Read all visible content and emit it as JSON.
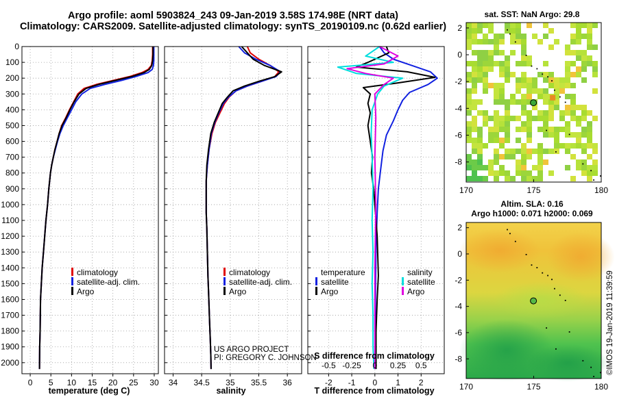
{
  "chart_data": {
    "type": "line",
    "title_line1": "Argo profile: aoml 5903824_243 09-Jan-2019 3.58S 174.98E (NRT data)",
    "title_line2": "Climatology: CARS2009. Satellite-adjusted climatology: synTS_20190109.nc (0.62d earlier)",
    "depth_axis": {
      "ticks": [
        0,
        100,
        200,
        300,
        400,
        500,
        600,
        700,
        800,
        900,
        1000,
        1100,
        1200,
        1300,
        1400,
        1500,
        1600,
        1700,
        1800,
        1900,
        2000
      ],
      "range": [
        0,
        2070
      ]
    },
    "panels": [
      {
        "id": "temperature",
        "xlabel": "temperature (deg C)",
        "xlim": [
          -2,
          31
        ],
        "xticks": [
          0,
          5,
          10,
          15,
          20,
          25,
          30
        ],
        "legend": [
          "climatology",
          "satellite-adj. clim.",
          "Argo"
        ],
        "series": [
          {
            "name": "climatology",
            "color": "#e00000",
            "x": [
              29.6,
              29.6,
              29.5,
              29.3,
              28.5,
              27.0,
              24.0,
              20.0,
              16.0,
              13.0,
              11.5,
              10.5,
              9.5,
              8.6,
              7.6,
              7.0,
              6.5,
              6.0,
              5.6,
              5.2,
              4.9,
              4.5,
              4.2,
              3.8,
              3.5,
              3.2,
              2.9,
              2.7,
              2.5,
              2.4,
              2.3,
              2.25
            ],
            "y": [
              0,
              50,
              90,
              120,
              145,
              165,
              190,
              215,
              240,
              265,
              300,
              350,
              400,
              450,
              500,
              550,
              600,
              650,
              700,
              750,
              800,
              900,
              1000,
              1100,
              1200,
              1300,
              1400,
              1500,
              1600,
              1800,
              1900,
              2040
            ]
          },
          {
            "name": "satellite-adj. clim.",
            "color": "#1020e0",
            "x": [
              29.9,
              29.9,
              29.9,
              29.8,
              29.5,
              28.5,
              25.5,
              22.0,
              18.0,
              14.5,
              12.5,
              11.0,
              10.0,
              9.0,
              8.0,
              7.2,
              6.6,
              6.1,
              5.6,
              5.2,
              4.9,
              4.5,
              4.2,
              3.8,
              3.5,
              3.2,
              2.9,
              2.7,
              2.5,
              2.4,
              2.3,
              2.25
            ],
            "y": [
              0,
              50,
              90,
              120,
              145,
              165,
              190,
              215,
              240,
              265,
              300,
              350,
              400,
              450,
              500,
              550,
              600,
              650,
              700,
              750,
              800,
              900,
              1000,
              1100,
              1200,
              1300,
              1400,
              1500,
              1600,
              1800,
              1900,
              2040
            ]
          },
          {
            "name": "Argo",
            "color": "#000000",
            "x": [
              29.7,
              29.7,
              29.6,
              29.4,
              28.8,
              27.5,
              24.5,
              20.5,
              16.5,
              13.5,
              11.8,
              10.6,
              9.6,
              8.7,
              7.7,
              7.0,
              6.5,
              6.0,
              5.6,
              5.2,
              4.9,
              4.5,
              4.2,
              3.8,
              3.5,
              3.2,
              2.9,
              2.7,
              2.5,
              2.4,
              2.3,
              2.25
            ],
            "y": [
              0,
              50,
              90,
              120,
              145,
              165,
              190,
              215,
              240,
              265,
              300,
              350,
              400,
              450,
              500,
              550,
              600,
              650,
              700,
              750,
              800,
              900,
              1000,
              1100,
              1200,
              1300,
              1400,
              1500,
              1600,
              1800,
              1900,
              2040
            ]
          }
        ]
      },
      {
        "id": "salinity",
        "xlabel": "salinity",
        "xlim": [
          33.85,
          36.25
        ],
        "xticks": [
          34,
          34.5,
          35,
          35.5,
          36
        ],
        "legend": [
          "climatology",
          "satellite-adj. clim.",
          "Argo"
        ],
        "series": [
          {
            "name": "climatology",
            "color": "#e00000",
            "x": [
              35.3,
              35.35,
              35.5,
              35.7,
              35.85,
              35.78,
              35.55,
              35.3,
              35.1,
              34.98,
              34.9,
              34.82,
              34.74,
              34.68,
              34.63,
              34.6,
              34.58,
              34.58,
              34.58,
              34.59,
              34.6,
              34.61,
              34.62,
              34.63,
              34.64,
              34.65,
              34.66,
              34.665
            ],
            "y": [
              0,
              40,
              80,
              120,
              160,
              190,
              220,
              250,
              280,
              320,
              360,
              420,
              480,
              550,
              650,
              750,
              850,
              950,
              1050,
              1150,
              1300,
              1450,
              1550,
              1650,
              1750,
              1850,
              1950,
              2040
            ]
          },
          {
            "name": "satellite-adj. clim.",
            "color": "#1020e0",
            "x": [
              35.15,
              35.25,
              35.45,
              35.7,
              35.88,
              35.8,
              35.55,
              35.3,
              35.1,
              34.97,
              34.88,
              34.8,
              34.73,
              34.67,
              34.63,
              34.6,
              34.58,
              34.58,
              34.58,
              34.59,
              34.6,
              34.61,
              34.62,
              34.63,
              34.64,
              34.65,
              34.66,
              34.665
            ],
            "y": [
              0,
              40,
              80,
              120,
              160,
              190,
              220,
              250,
              280,
              320,
              360,
              420,
              480,
              550,
              650,
              750,
              850,
              950,
              1050,
              1150,
              1300,
              1450,
              1550,
              1650,
              1750,
              1850,
              1950,
              2040
            ]
          },
          {
            "name": "Argo",
            "color": "#000000",
            "x": [
              35.2,
              35.3,
              35.4,
              35.6,
              35.9,
              35.78,
              35.5,
              35.25,
              35.05,
              34.95,
              34.86,
              34.79,
              34.72,
              34.66,
              34.62,
              34.59,
              34.58,
              34.58,
              34.58,
              34.59,
              34.6,
              34.61,
              34.62,
              34.63,
              34.64,
              34.65,
              34.66,
              34.665
            ],
            "y": [
              0,
              40,
              80,
              120,
              160,
              190,
              220,
              250,
              280,
              320,
              360,
              420,
              480,
              550,
              650,
              750,
              850,
              950,
              1050,
              1150,
              1300,
              1450,
              1550,
              1650,
              1750,
              1850,
              1950,
              2040
            ]
          }
        ]
      },
      {
        "id": "difference",
        "xlabel": "T difference from climatology",
        "xlabel_top": "S difference from climatology",
        "xlim": [
          -2.9,
          3.0
        ],
        "xticks": [
          -2,
          -1,
          0,
          1,
          2
        ],
        "xlim_top": [
          -0.725,
          0.75
        ],
        "xticks_top": [
          -0.5,
          -0.25,
          0,
          0.25,
          0.5
        ],
        "legend_left_title": "temperature",
        "legend_right_title": "salinity",
        "legend_left": [
          "satellite",
          "Argo"
        ],
        "legend_right": [
          "satellite",
          "Argo"
        ],
        "series": [
          {
            "name": "temperature satellite",
            "color": "#1020e0",
            "x": [
              0.2,
              0.4,
              0.8,
              1.6,
              2.4,
              2.7,
              2.3,
              1.5,
              1.2,
              1.0,
              0.8,
              0.5,
              0.35,
              0.25,
              0.15,
              0.1,
              0.05,
              0.03,
              0.02,
              0.02,
              0.02
            ],
            "y": [
              0,
              40,
              80,
              120,
              160,
              200,
              240,
              290,
              340,
              400,
              470,
              560,
              660,
              780,
              900,
              1050,
              1250,
              1500,
              1750,
              1950,
              2040
            ]
          },
          {
            "name": "temperature Argo",
            "color": "#000000",
            "x": [
              0.5,
              0.6,
              -0.3,
              -0.8,
              1.4,
              2.6,
              1.0,
              -0.5,
              -0.2,
              -0.3,
              -0.2,
              -0.3,
              -0.2,
              -0.1,
              -0.15,
              -0.05,
              0.1,
              0.15,
              0.1,
              0.05,
              0.05
            ],
            "y": [
              0,
              40,
              100,
              130,
              160,
              195,
              230,
              260,
              300,
              360,
              420,
              500,
              600,
              700,
              800,
              900,
              1200,
              1450,
              1600,
              1800,
              2040
            ]
          },
          {
            "name": "salinity satellite",
            "color": "#00dddd",
            "x": [
              0.05,
              -0.1,
              0.2,
              -0.4,
              -0.2,
              0.3,
              0.1,
              0.03,
              -0.03,
              -0.04,
              -0.03,
              -0.02,
              -0.03,
              -0.02,
              -0.03,
              -0.02,
              -0.02,
              -0.01
            ],
            "y": [
              0,
              60,
              100,
              130,
              170,
              200,
              250,
              300,
              400,
              550,
              700,
              900,
              1100,
              1300,
              1500,
              1700,
              1900,
              2040
            ]
          },
          {
            "name": "salinity Argo",
            "color": "#e000e0",
            "x": [
              0.05,
              0.25,
              0.1,
              -0.3,
              -0.1,
              0.2,
              0.1,
              0.0,
              0.01,
              0.0,
              0.01,
              0.0,
              0.0,
              0.0
            ],
            "y": [
              0,
              60,
              110,
              140,
              170,
              200,
              240,
              300,
              450,
              700,
              1000,
              1400,
              1800,
              2040
            ]
          }
        ]
      }
    ],
    "maps": [
      {
        "id": "sst_map",
        "title": "sat. SST: NaN Argo: 29.8",
        "xticks": [
          170,
          175,
          180
        ],
        "yticks": [
          2,
          0,
          -2,
          -4,
          -6,
          -8
        ],
        "xlim": [
          170,
          180
        ],
        "ylim": [
          -9.5,
          2.4
        ],
        "argo_position": {
          "lon": 174.98,
          "lat": -3.58
        }
      },
      {
        "id": "sla_map",
        "title": "Altim. SLA: 0.16",
        "subtitle": "Argo h1000: 0.071 h2000: 0.069",
        "xticks": [
          170,
          175,
          180
        ],
        "yticks": [
          2,
          0,
          -2,
          -4,
          -6,
          -8
        ],
        "xlim": [
          170,
          180
        ],
        "ylim": [
          -9.5,
          2.4
        ],
        "argo_position": {
          "lon": 174.98,
          "lat": -3.58
        }
      }
    ],
    "annotation_line1": "US ARGO PROJECT",
    "annotation_line2": "PI: GREGORY C. JOHNSON",
    "stamp": "©IMOS 19-Jan-2019 11:39:59"
  }
}
